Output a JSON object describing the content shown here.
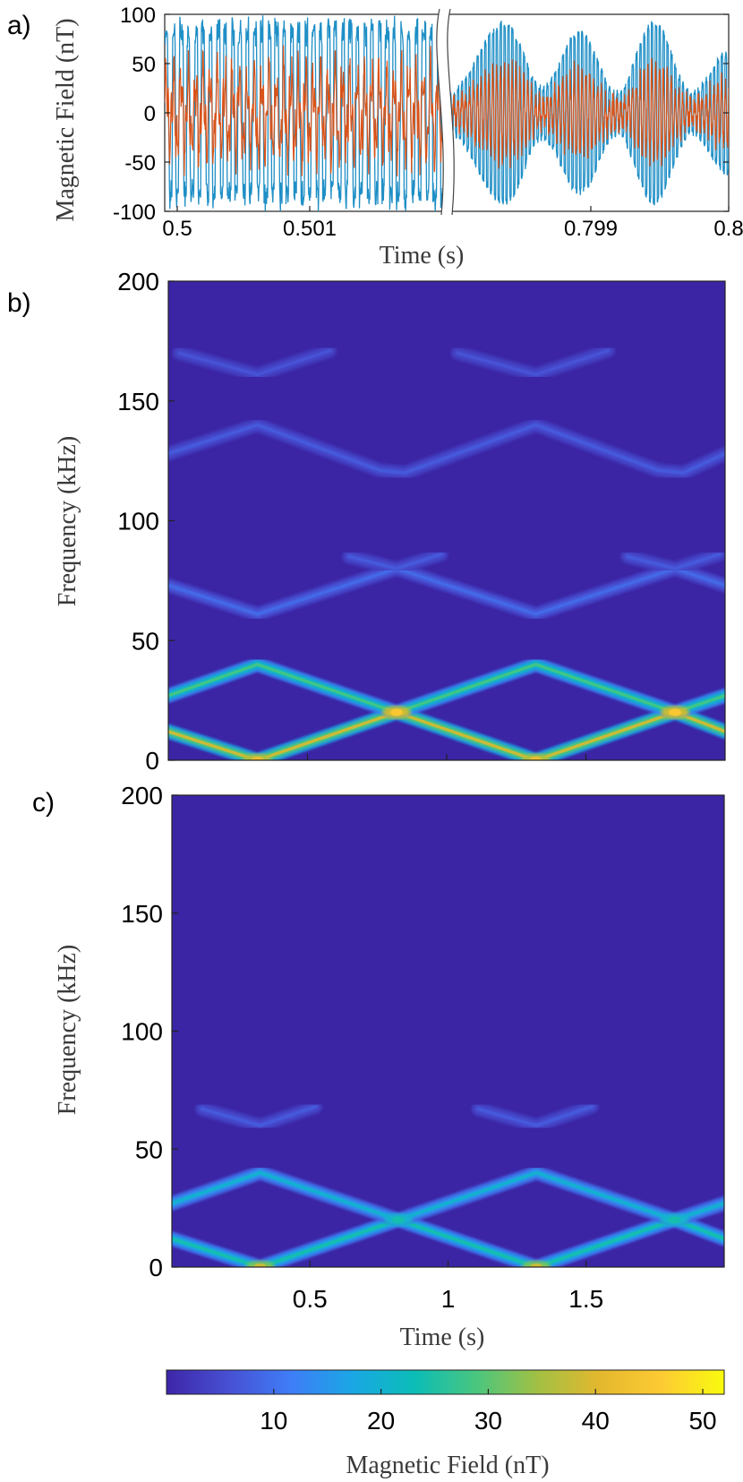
{
  "chart_data": [
    {
      "panel": "a)",
      "type": "line",
      "xlabel": "Time (s)",
      "ylabel": "Magnetic Field (nT)",
      "ylim": [
        -100,
        100
      ],
      "yticks": [
        "100",
        "50",
        "0",
        "-50",
        "-100"
      ],
      "xticks": [
        "0.5",
        "0.501",
        "0.799",
        "0.8"
      ],
      "axis_break": true,
      "colors": {
        "series1": "#1f8fc6",
        "series2": "#d95319"
      },
      "segments": [
        {
          "xlim": [
            0.5,
            0.5015
          ],
          "description_free": true
        },
        {
          "xlim": [
            0.7985,
            0.8
          ]
        }
      ],
      "series": [
        {
          "color": "#1f8fc6",
          "amplitude": 95,
          "segment2_envelope": [
            [
              0.7985,
              20
            ],
            [
              0.7988,
              90
            ],
            [
              0.799,
              25
            ],
            [
              0.7992,
              80
            ],
            [
              0.7994,
              20
            ],
            [
              0.7996,
              90
            ],
            [
              0.7998,
              20
            ],
            [
              0.8,
              60
            ]
          ]
        },
        {
          "color": "#d95319",
          "amplitude": 60
        }
      ]
    },
    {
      "panel": "b)",
      "type": "heatmap",
      "xlabel": "",
      "ylabel": "Frequency (kHz)",
      "xlim": [
        0,
        2
      ],
      "ylim": [
        0,
        200
      ],
      "yticks": [
        "200",
        "150",
        "100",
        "50",
        "0"
      ],
      "xticks_positions": [
        0.5,
        1,
        1.5
      ],
      "background_color": "#3b25a4",
      "ridges": [
        {
          "points": [
            [
              0,
              12
            ],
            [
              0.32,
              0
            ],
            [
              0.82,
              20
            ],
            [
              1.32,
              0
            ],
            [
              1.82,
              20
            ],
            [
              2,
              12
            ]
          ],
          "peak_nT": 38
        },
        {
          "points": [
            [
              0,
              27
            ],
            [
              0.32,
              40
            ],
            [
              0.82,
              20
            ],
            [
              1.32,
              40
            ],
            [
              1.82,
              20
            ],
            [
              2,
              27
            ]
          ],
          "peak_nT": 28
        },
        {
          "points": [
            [
              0,
              73
            ],
            [
              0.32,
              61
            ],
            [
              0.82,
              80
            ],
            [
              1.32,
              61
            ],
            [
              1.82,
              80
            ],
            [
              2,
              73
            ]
          ],
          "peak_nT": 9
        },
        {
          "points": [
            [
              0.65,
              85
            ],
            [
              0.82,
              80
            ],
            [
              0.98,
              86
            ]
          ],
          "peak_nT": 7
        },
        {
          "points": [
            [
              1.65,
              85
            ],
            [
              1.82,
              80
            ],
            [
              1.98,
              86
            ]
          ],
          "peak_nT": 7
        },
        {
          "points": [
            [
              0,
              128
            ],
            [
              0.32,
              140
            ],
            [
              0.76,
              121
            ],
            [
              0.85,
              120
            ],
            [
              1.32,
              140
            ],
            [
              1.76,
              121
            ],
            [
              1.85,
              120
            ],
            [
              2,
              128
            ]
          ],
          "peak_nT": 7
        },
        {
          "points": [
            [
              0.04,
              170
            ],
            [
              0.32,
              161
            ],
            [
              0.58,
              171
            ]
          ],
          "peak_nT": 6
        },
        {
          "points": [
            [
              1.04,
              170
            ],
            [
              1.32,
              161
            ],
            [
              1.58,
              171
            ]
          ],
          "peak_nT": 6
        }
      ],
      "hotspots": [
        [
          0.82,
          20,
          45
        ],
        [
          1.82,
          20,
          45
        ],
        [
          0.32,
          0,
          42
        ],
        [
          1.32,
          0,
          42
        ]
      ]
    },
    {
      "panel": "c)",
      "type": "heatmap",
      "xlabel": "Time (s)",
      "ylabel": "Frequency (kHz)",
      "xlim": [
        0,
        2
      ],
      "ylim": [
        0,
        200
      ],
      "yticks": [
        "200",
        "150",
        "100",
        "50",
        "0"
      ],
      "xticks": [
        "0.5",
        "1",
        "1.5"
      ],
      "background_color": "#3b25a4",
      "ridges": [
        {
          "points": [
            [
              0,
              12
            ],
            [
              0.32,
              0
            ],
            [
              0.82,
              20
            ],
            [
              1.32,
              0
            ],
            [
              1.82,
              20
            ],
            [
              2,
              12
            ]
          ],
          "peak_nT": 24
        },
        {
          "points": [
            [
              0,
              27
            ],
            [
              0.32,
              40
            ],
            [
              0.82,
              20
            ],
            [
              1.32,
              40
            ],
            [
              1.82,
              20
            ],
            [
              2,
              27
            ]
          ],
          "peak_nT": 20
        },
        {
          "points": [
            [
              0.11,
              67
            ],
            [
              0.32,
              60
            ],
            [
              0.52,
              68
            ]
          ],
          "peak_nT": 7
        },
        {
          "points": [
            [
              1.11,
              67
            ],
            [
              1.32,
              60
            ],
            [
              1.52,
              68
            ]
          ],
          "peak_nT": 7
        }
      ],
      "hotspots": [
        [
          0.32,
          0,
          38
        ],
        [
          1.32,
          0,
          38
        ],
        [
          0.82,
          20,
          24
        ],
        [
          1.82,
          20,
          24
        ]
      ]
    },
    {
      "type": "colorbar",
      "label": "Magnetic Field (nT)",
      "range": [
        0,
        52
      ],
      "ticks": [
        "10",
        "20",
        "30",
        "40",
        "50"
      ],
      "tick_values": [
        10,
        20,
        30,
        40,
        50
      ],
      "colormap": [
        "#3e26a8",
        "#4750d3",
        "#3f7df7",
        "#1aa7e5",
        "#0bbdb7",
        "#4ac67f",
        "#a3c043",
        "#e4b82e",
        "#fdcb33",
        "#f9fb0e"
      ]
    }
  ],
  "labels": {
    "panel_a": "a)",
    "panel_b": "b)",
    "panel_c": "c)"
  }
}
